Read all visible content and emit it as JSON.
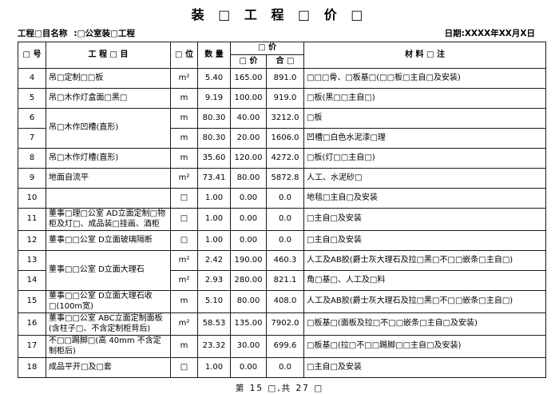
{
  "title": "装 □ 工 程 □ 价 □",
  "meta": {
    "project_label": "工程□目名称",
    "project_value": ":□公室装□工程",
    "date": "日期:XXXX年XX月X日"
  },
  "table": {
    "headers": {
      "no": "□ 号",
      "item": "工 程 □ 目",
      "unit": "□ 位",
      "qty": "数 量",
      "price_group": "□ 价",
      "unit_price": "□ 价",
      "total": "合 □",
      "material": "材 料 □ 注"
    },
    "rows": [
      {
        "no": "4",
        "item": "吊□定制□□板",
        "unit": "m²",
        "qty": "5.40",
        "unit_price": "165.00",
        "total": "891.0",
        "material": "□□□骨、□板基□(□□板□主自□及安装)"
      },
      {
        "no": "5",
        "item": "吊□木作灯盒面□黑□",
        "unit": "m",
        "qty": "9.19",
        "unit_price": "100.00",
        "total": "919.0",
        "material": "□板(黑□□主自□)"
      },
      {
        "no": "6",
        "item": "吊□木作凹槽(直形)",
        "unit": "m",
        "qty": "80.30",
        "unit_price": "40.00",
        "total": "3212.0",
        "material": "□板"
      },
      {
        "no": "7",
        "unit": "m",
        "qty": "80.30",
        "unit_price": "20.00",
        "total": "1606.0",
        "material": "凹槽□白色水泥漆□理"
      },
      {
        "no": "8",
        "item": "吊□木作灯槽(直形)",
        "unit": "m",
        "qty": "35.60",
        "unit_price": "120.00",
        "total": "4272.0",
        "material": "□板(灯□□主自□)"
      },
      {
        "no": "9",
        "item": "地面自流平",
        "unit": "m²",
        "qty": "73.41",
        "unit_price": "80.00",
        "total": "5872.8",
        "material": "人工、水泥砂□"
      },
      {
        "no": "10",
        "item": "",
        "unit": "□",
        "qty": "1.00",
        "unit_price": "0.00",
        "total": "0.0",
        "material": "地毯□主自□及安装"
      },
      {
        "no": "11",
        "item": "董事□理□公室 AD立面定制□物柜及灯□、成品装□挂画、酒柜",
        "unit": "□",
        "qty": "1.00",
        "unit_price": "0.00",
        "total": "0.0",
        "material": "□主自□及安装"
      },
      {
        "no": "12",
        "item": "董事□□公室 D立面玻璃隔断",
        "unit": "□",
        "qty": "1.00",
        "unit_price": "0.00",
        "total": "0.0",
        "material": "□主自□及安装"
      },
      {
        "no": "13",
        "item": "董事□□公室 D立面大理石",
        "unit": "m²",
        "qty": "2.42",
        "unit_price": "190.00",
        "total": "460.3",
        "material": "人工及AB胶(爵士灰大理石及拉□黑□不□□嵌条□主自□)"
      },
      {
        "no": "14",
        "unit": "m²",
        "qty": "2.93",
        "unit_price": "280.00",
        "total": "821.1",
        "material": "角□基□、人工及□料"
      },
      {
        "no": "15",
        "item": "董事□□公室 D立面大理石收□(100m宽)",
        "unit": "m",
        "qty": "5.10",
        "unit_price": "80.00",
        "total": "408.0",
        "material": "人工及AB胶(爵士灰大理石及拉□黑□不□□嵌条□主自□)"
      },
      {
        "no": "16",
        "item": "董事□□公室 ABC立面定制面板(含柱子□、不含定制柜背后)",
        "unit": "m²",
        "qty": "58.53",
        "unit_price": "135.00",
        "total": "7902.0",
        "material": "□板基□(面板及拉□不□□嵌条□主自□及安装)"
      },
      {
        "no": "17",
        "item": "不□□踢脚□(高 40mm 不含定制柜后)",
        "unit": "m",
        "qty": "23.32",
        "unit_price": "30.00",
        "total": "699.6",
        "material": "□板基□(拉□不□□踢脚□□主自□及安装)"
      },
      {
        "no": "18",
        "item": "成品平开□及□套",
        "unit": "□",
        "qty": "1.00",
        "unit_price": "0.00",
        "total": "0.0",
        "material": "□主自□及安装"
      }
    ]
  },
  "footer": "第 15 □,共 27 □"
}
